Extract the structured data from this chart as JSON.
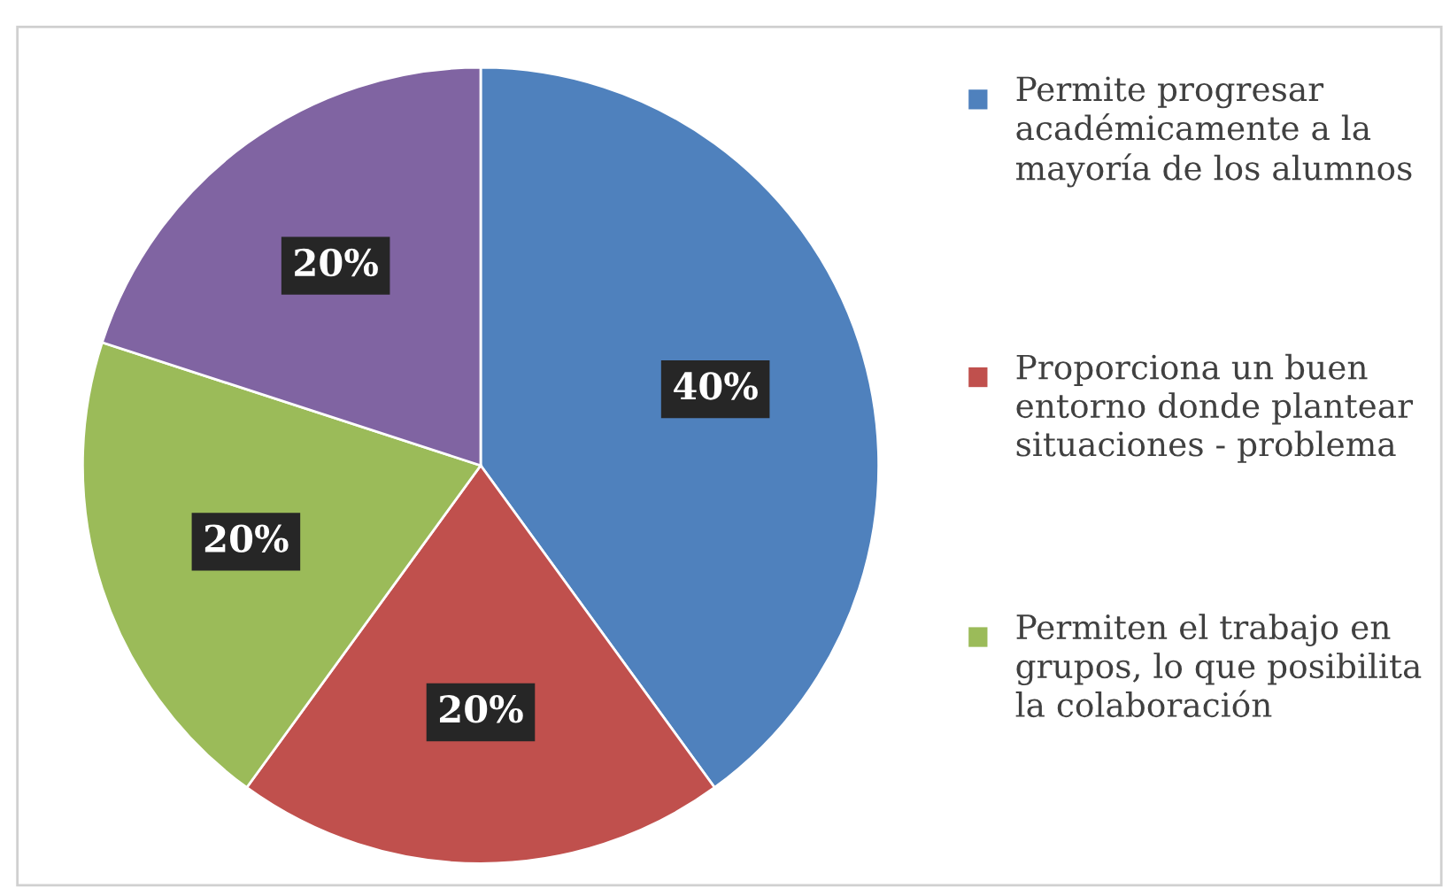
{
  "chart_data": {
    "type": "pie",
    "categories": [
      "Permite progresar académicamente a la mayoría de los alumnos",
      "Proporciona un buen entorno donde plantear situaciones - problema",
      "Permiten el trabajo en grupos, lo que posibilita la colaboración",
      null
    ],
    "values": [
      40,
      20,
      20,
      20
    ],
    "colors": [
      "#4f81bd",
      "#c0504d",
      "#9bbb59",
      "#8064a2"
    ],
    "value_labels": [
      "40%",
      "20%",
      "20%",
      "20%"
    ],
    "legend": "right"
  }
}
